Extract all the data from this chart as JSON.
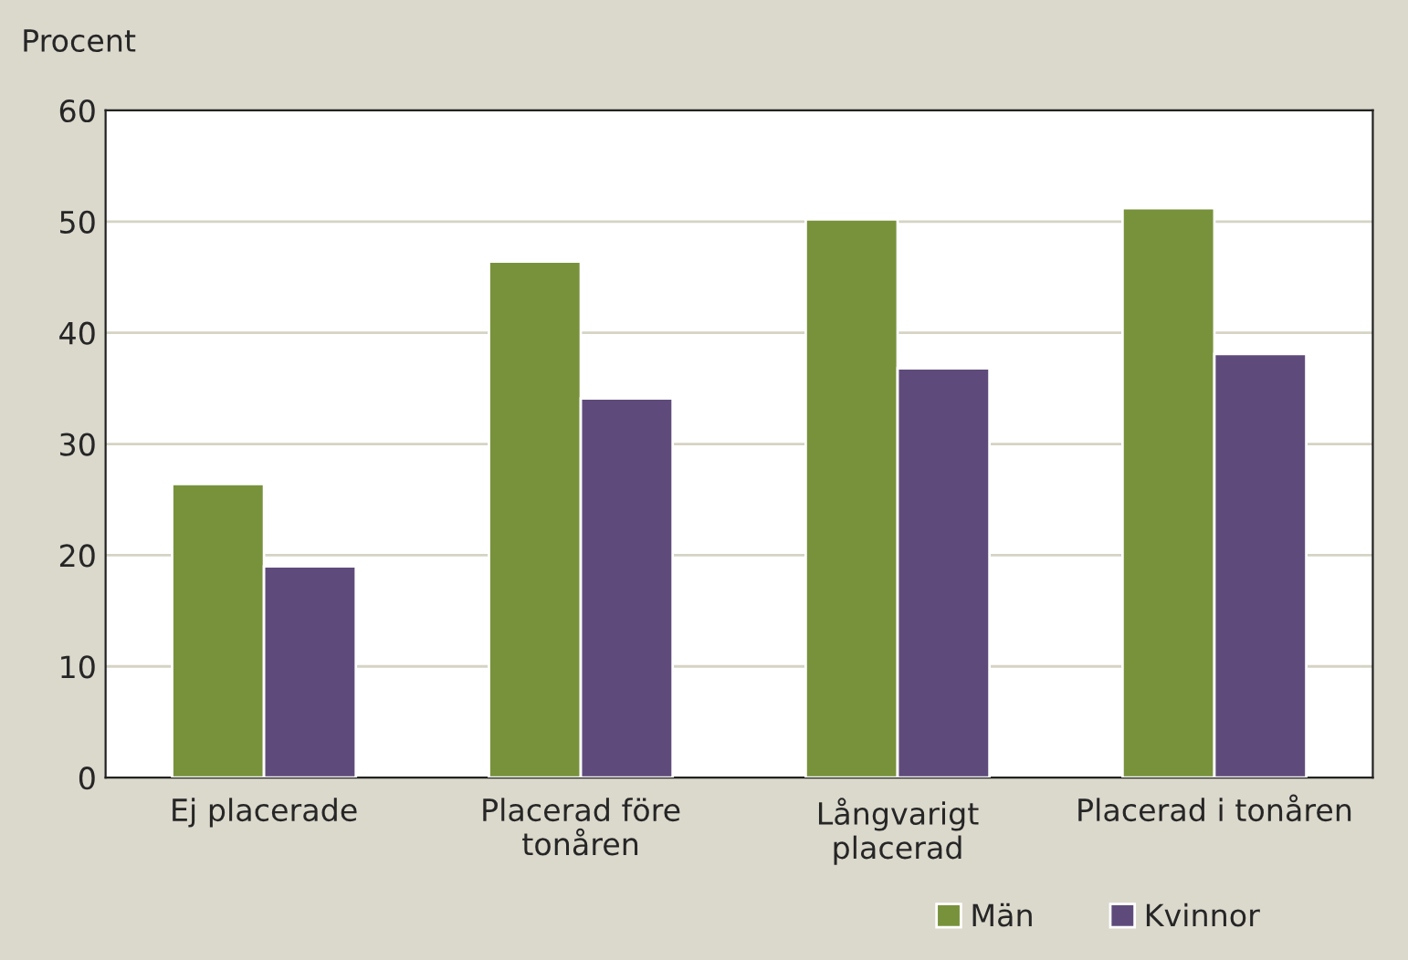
{
  "chart_data": {
    "type": "bar",
    "ylabel": "Procent",
    "categories": [
      "Ej placerade",
      "Placerad före\ntonåren",
      "Långvarigt\nplacerad",
      "Placerad i tonåren"
    ],
    "series": [
      {
        "name": "Män",
        "color": "#78923c",
        "values": [
          26.4,
          46.4,
          50.2,
          51.2
        ]
      },
      {
        "name": "Kvinnor",
        "color": "#5f4b7b",
        "values": [
          19.0,
          34.1,
          36.8,
          38.1
        ]
      }
    ],
    "ylim": [
      0,
      60
    ],
    "yticks": [
      0,
      10,
      20,
      30,
      40,
      50,
      60
    ],
    "grid": "y",
    "legend": "bottom"
  }
}
